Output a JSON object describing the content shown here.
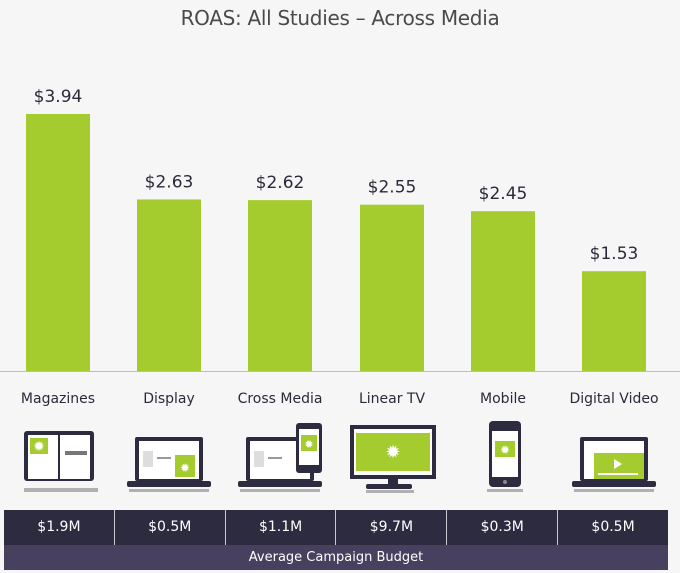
{
  "chart_data": {
    "type": "bar",
    "title": "ROAS: All Studies – Across Media",
    "categories": [
      "Magazines",
      "Display",
      "Cross Media",
      "Linear TV",
      "Mobile",
      "Digital Video"
    ],
    "values": [
      3.94,
      2.63,
      2.62,
      2.55,
      2.45,
      1.53
    ],
    "data_labels": [
      "$3.94",
      "$2.63",
      "$2.62",
      "$2.55",
      "$2.45",
      "$1.53"
    ],
    "ylim": [
      0,
      3.94
    ],
    "grid": false,
    "bar_color": "#a4cc2e",
    "xlabel": "",
    "ylabel": ""
  },
  "icons": [
    "magazine-icon",
    "laptop-display-icon",
    "laptop-phone-icon",
    "tv-icon",
    "mobile-phone-icon",
    "laptop-video-icon"
  ],
  "budget": {
    "values": [
      "$1.9M",
      "$0.5M",
      "$1.1M",
      "$9.7M",
      "$0.3M",
      "$0.5M"
    ],
    "label": "Average Campaign Budget",
    "colors": {
      "row": "#2c2b40",
      "label_row": "#47415f"
    }
  }
}
